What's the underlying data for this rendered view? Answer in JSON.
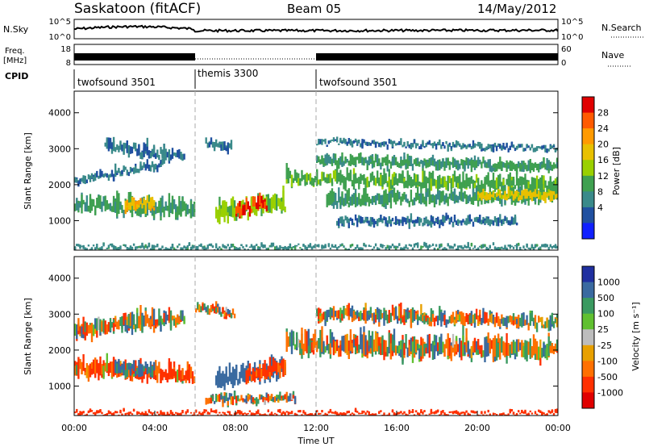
{
  "header": {
    "station": "Saskatoon (fitACF)",
    "beam": "Beam 05",
    "date": "14/May/2012"
  },
  "noise_panel": {
    "left_label": "N.Sky",
    "right_label": "N.Search",
    "left_ticks": [
      "10^5",
      "10^0"
    ],
    "right_ticks": [
      "10^5",
      "10^0"
    ]
  },
  "freq_panel": {
    "left_label_1": "Freq.",
    "left_label_2": "[MHz]",
    "right_label": "Nave",
    "left_ticks": [
      "18",
      "8"
    ],
    "right_ticks": [
      "60",
      "0"
    ]
  },
  "cpid": {
    "label": "CPID",
    "segments": [
      {
        "name": "twofsound 3501",
        "start_h": 0,
        "end_h": 6
      },
      {
        "name": "themis 3300",
        "start_h": 6,
        "end_h": 12
      },
      {
        "name": "twofsound 3501",
        "start_h": 12,
        "end_h": 24
      }
    ]
  },
  "axes": {
    "ylabel": "Slant Range [km]",
    "xlabel": "Time UT",
    "yticks": [
      "1000",
      "2000",
      "3000",
      "4000"
    ],
    "xticks": [
      "00:00",
      "04:00",
      "08:00",
      "12:00",
      "16:00",
      "20:00",
      "00:00"
    ]
  },
  "power_colorbar": {
    "label": "Power [dB]",
    "ticks": [
      "28",
      "24",
      "20",
      "16",
      "12",
      "8",
      "4"
    ],
    "colors": [
      "#e00000",
      "#ff5a00",
      "#ff9a00",
      "#e8c000",
      "#9ad000",
      "#3fa050",
      "#3a8a8a",
      "#2050a0",
      "#1020ff"
    ]
  },
  "velocity_colorbar": {
    "label": "Velocity [m s⁻¹]",
    "ticks": [
      "1000",
      "500",
      "100",
      "25",
      "-25",
      "-100",
      "-500",
      "-1000"
    ],
    "colors": [
      "#2030a0",
      "#3a6aa0",
      "#3a9a60",
      "#60c030",
      "#bdbdbd",
      "#e8a000",
      "#ff7000",
      "#ff3000",
      "#e00000"
    ]
  },
  "chart_data": [
    {
      "type": "heatmap",
      "title": "Power",
      "xlabel": "Time UT",
      "ylabel": "Slant Range [km]",
      "xlim": [
        0,
        24
      ],
      "ylim": [
        180,
        4600
      ],
      "colorbar": "Power [dB]",
      "colorbar_range": [
        0,
        30
      ],
      "bands": [
        {
          "t0": 0.0,
          "t1": 6.0,
          "r_mid_start": 1500,
          "r_mid_end": 1300,
          "width": 600,
          "value": 10
        },
        {
          "t0": 0.0,
          "t1": 4.5,
          "r_mid_start": 2100,
          "r_mid_end": 2600,
          "width": 300,
          "value": 6
        },
        {
          "t0": 1.5,
          "t1": 5.5,
          "r_mid_start": 3100,
          "r_mid_end": 2800,
          "width": 400,
          "value": 6
        },
        {
          "t0": 2.5,
          "t1": 4.0,
          "r_mid_start": 1400,
          "r_mid_end": 1500,
          "width": 400,
          "value": 20
        },
        {
          "t0": 7.0,
          "t1": 10.5,
          "r_mid_start": 1200,
          "r_mid_end": 1500,
          "width": 700,
          "value": 14
        },
        {
          "t0": 8.0,
          "t1": 9.6,
          "r_mid_start": 1300,
          "r_mid_end": 1500,
          "width": 500,
          "value": 28
        },
        {
          "t0": 6.5,
          "t1": 7.8,
          "r_mid_start": 3200,
          "r_mid_end": 3000,
          "width": 300,
          "value": 6
        },
        {
          "t0": 10.5,
          "t1": 24.0,
          "r_mid_start": 2200,
          "r_mid_end": 2000,
          "width": 500,
          "value": 12
        },
        {
          "t0": 12.0,
          "t1": 24.0,
          "r_mid_start": 2700,
          "r_mid_end": 2500,
          "width": 400,
          "value": 10
        },
        {
          "t0": 12.5,
          "t1": 24.0,
          "r_mid_start": 1600,
          "r_mid_end": 1700,
          "width": 500,
          "value": 10
        },
        {
          "t0": 20.0,
          "t1": 24.0,
          "r_mid_start": 1700,
          "r_mid_end": 1700,
          "width": 300,
          "value": 18
        },
        {
          "t0": 12.0,
          "t1": 24.0,
          "r_mid_start": 3200,
          "r_mid_end": 3000,
          "width": 200,
          "value": 6
        },
        {
          "t0": 13.0,
          "t1": 22.0,
          "r_mid_start": 1000,
          "r_mid_end": 1000,
          "width": 300,
          "value": 6
        },
        {
          "t0": 0.0,
          "t1": 24.0,
          "r_mid_start": 260,
          "r_mid_end": 260,
          "width": 140,
          "value": 8
        }
      ]
    },
    {
      "type": "heatmap",
      "title": "Velocity",
      "xlabel": "Time UT",
      "ylabel": "Slant Range [km]",
      "xlim": [
        0,
        24
      ],
      "ylim": [
        180,
        4600
      ],
      "colorbar": "Velocity [m s⁻¹]",
      "colorbar_range": [
        -1000,
        1000
      ],
      "bands": [
        {
          "t0": 0.0,
          "t1": 6.0,
          "r_mid_start": 1500,
          "r_mid_end": 1300,
          "width": 600,
          "value": -100
        },
        {
          "t0": 2.0,
          "t1": 4.0,
          "r_mid_start": 1500,
          "r_mid_end": 1500,
          "width": 500,
          "value": 150
        },
        {
          "t0": 0.0,
          "t1": 5.5,
          "r_mid_start": 2600,
          "r_mid_end": 2900,
          "width": 600,
          "value": 0
        },
        {
          "t0": 7.0,
          "t1": 10.5,
          "r_mid_start": 1200,
          "r_mid_end": 1500,
          "width": 700,
          "value": 200
        },
        {
          "t0": 8.5,
          "t1": 10.5,
          "r_mid_start": 1300,
          "r_mid_end": 1500,
          "width": 500,
          "value": -150
        },
        {
          "t0": 6.0,
          "t1": 8.0,
          "r_mid_start": 3200,
          "r_mid_end": 3000,
          "width": 300,
          "value": 0
        },
        {
          "t0": 10.5,
          "t1": 24.0,
          "r_mid_start": 2200,
          "r_mid_end": 2000,
          "width": 800,
          "value": 0
        },
        {
          "t0": 12.0,
          "t1": 24.0,
          "r_mid_start": 3000,
          "r_mid_end": 2800,
          "width": 500,
          "value": 0
        },
        {
          "t0": 6.5,
          "t1": 11.0,
          "r_mid_start": 600,
          "r_mid_end": 700,
          "width": 300,
          "value": 0
        },
        {
          "t0": 0.0,
          "t1": 24.0,
          "r_mid_start": 240,
          "r_mid_end": 240,
          "width": 120,
          "value": -300
        }
      ]
    }
  ]
}
